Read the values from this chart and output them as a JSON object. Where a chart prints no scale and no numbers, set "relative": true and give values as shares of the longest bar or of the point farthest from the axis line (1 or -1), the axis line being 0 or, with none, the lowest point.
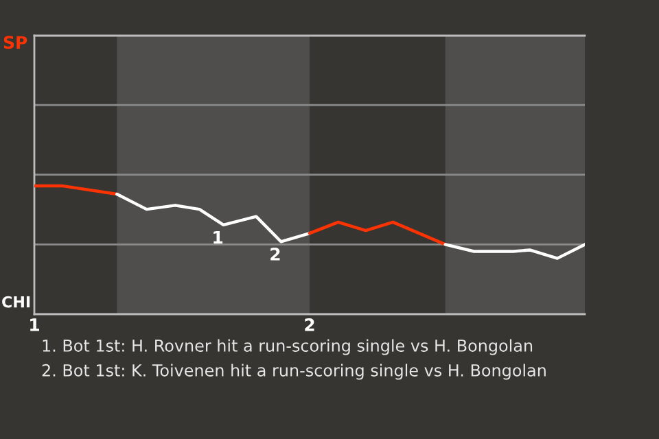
{
  "chart_data": {
    "type": "line",
    "relative": true,
    "series": [
      {
        "color": "#ff3300",
        "x": [
          1.0,
          1.1,
          1.3
        ],
        "values": [
          1,
          1,
          0.935
        ]
      },
      {
        "color": "#ffffff",
        "x": [
          1.3,
          1.408,
          1.512,
          1.6,
          1.687,
          1.806,
          1.896,
          2.0
        ],
        "values": [
          0.935,
          0.817,
          0.848,
          0.817,
          0.696,
          0.761,
          0.565,
          0.63
        ]
      },
      {
        "color": "#ff3300",
        "x": [
          2.0,
          2.104,
          2.204,
          2.303,
          2.493
        ],
        "values": [
          0.63,
          0.717,
          0.652,
          0.717,
          0.543
        ]
      },
      {
        "color": "#ffffff",
        "x": [
          2.493,
          2.597,
          2.74,
          2.8,
          2.9,
          3.0
        ],
        "values": [
          0.543,
          0.489,
          0.489,
          0.5,
          0.435,
          0.543
        ]
      }
    ],
    "xlim": [
      1,
      3
    ],
    "xticks": [
      1,
      2
    ],
    "ref_lines": [
      {
        "axis": "y",
        "value": 0.543,
        "color": "#8a8a8a"
      },
      {
        "axis": "y",
        "value": 1.087,
        "color": "#8a8a8a"
      },
      {
        "axis": "y",
        "value": 1.63,
        "color": "#8a8a8a"
      }
    ],
    "bands": [
      {
        "axis": "x",
        "from": 1.3,
        "to": 2.0,
        "color": "#4f4e4c"
      },
      {
        "axis": "x",
        "from": 2.493,
        "to": 3.0,
        "color": "#4f4e4c"
      }
    ],
    "annotations": [
      "SP",
      "CHI",
      {
        "text": "1",
        "x": 1.687,
        "y": 0.696
      },
      {
        "text": "2",
        "x": 1.896,
        "y": 0.565
      },
      "1. Bot 1st: H. Rovner hit a run-scoring single vs H. Bongolan",
      "2. Bot 1st: K. Toivenen hit a run-scoring single vs H. Bongolan"
    ]
  }
}
